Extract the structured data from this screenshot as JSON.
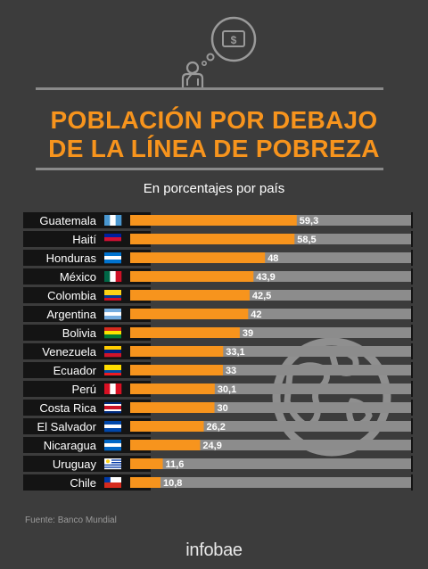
{
  "header": {
    "title_line1": "POBLACIÓN POR DEBAJO",
    "title_line2": "DE LA LÍNEA DE POBREZA",
    "subtitle": "En porcentajes por país"
  },
  "icons": [
    "person-thinking-icon",
    "money-thought-bubble-icon",
    "globe-icon"
  ],
  "colors": {
    "background": "#3c3c3c",
    "accent": "#f7941d",
    "bar_track": "#8c8c8c",
    "row_label_bg": "#141414",
    "text": "#ffffff"
  },
  "chart_data": {
    "type": "bar",
    "orientation": "horizontal",
    "categories": [
      "Guatemala",
      "Haití",
      "Honduras",
      "México",
      "Colombia",
      "Argentina",
      "Bolivia",
      "Venezuela",
      "Ecuador",
      "Perú",
      "Costa Rica",
      "El Salvador",
      "Nicaragua",
      "Uruguay",
      "Chile"
    ],
    "values": [
      59.3,
      58.5,
      48,
      43.9,
      42.5,
      42,
      39,
      33.1,
      33,
      30.1,
      30,
      26.2,
      24.9,
      11.6,
      10.8
    ],
    "value_labels": [
      "59,3",
      "58,5",
      "48",
      "43,9",
      "42,5",
      "42",
      "39",
      "33,1",
      "33",
      "30,1",
      "30",
      "26,2",
      "24,9",
      "11,6",
      "10,8"
    ],
    "flags": [
      "guatemala-flag-icon",
      "haiti-flag-icon",
      "honduras-flag-icon",
      "mexico-flag-icon",
      "colombia-flag-icon",
      "argentina-flag-icon",
      "bolivia-flag-icon",
      "venezuela-flag-icon",
      "ecuador-flag-icon",
      "peru-flag-icon",
      "costa-rica-flag-icon",
      "el-salvador-flag-icon",
      "nicaragua-flag-icon",
      "uruguay-flag-icon",
      "chile-flag-icon"
    ],
    "xlim": [
      0,
      100
    ],
    "grid": false,
    "legend": "none"
  },
  "footer": {
    "source": "Fuente: Banco Mundial",
    "brand": "infobae"
  }
}
